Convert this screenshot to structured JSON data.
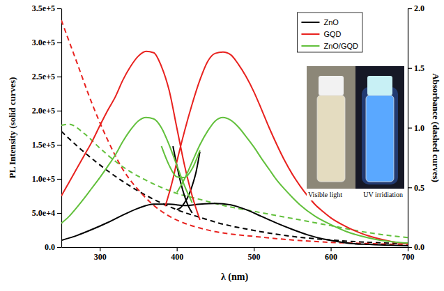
{
  "chart_data": {
    "type": "line",
    "x_label": "λ (nm)",
    "y_label": "PL Intensity (solid curves)",
    "y2_label": "Absorbance (dashed curves)",
    "xlim": [
      250,
      700
    ],
    "xticks": [
      300,
      400,
      500,
      600,
      700
    ],
    "ylim": [
      0,
      350000
    ],
    "yticks": [
      {
        "value": 0,
        "label": "0.0"
      },
      {
        "value": 50000,
        "label": "5.0e+4"
      },
      {
        "value": 100000,
        "label": "1.0e+5"
      },
      {
        "value": 150000,
        "label": "1.5e+5"
      },
      {
        "value": 200000,
        "label": "2.0e+5"
      },
      {
        "value": 250000,
        "label": "2.5e+5"
      },
      {
        "value": 300000,
        "label": "3.0e+5"
      },
      {
        "value": 350000,
        "label": "3.5e+5"
      }
    ],
    "y2lim": [
      0,
      2
    ],
    "y2ticks": [
      {
        "value": 0,
        "label": "0.0"
      },
      0.5,
      {
        "value": 1,
        "label": "1.0"
      },
      1.5,
      {
        "value": 2,
        "label": "2.0"
      }
    ],
    "grid": false,
    "legend": "upper right",
    "annotations": [
      "Visible light",
      "UV irridiation"
    ],
    "series": [
      {
        "name": "ZnO",
        "color": "#000000",
        "pl": [
          {
            "line_style": "solid",
            "axis": "y",
            "x": [
              250,
              270,
              290,
              310,
              330,
              350,
              370,
              390,
              410,
              430,
              450,
              470,
              490,
              510,
              530,
              550,
              570,
              590,
              610,
              630,
              650,
              670,
              700
            ],
            "values": [
              10000,
              17000,
              26000,
              36000,
              47000,
              57000,
              63000,
              63000,
              61000,
              63000,
              64000,
              62000,
              55000,
              45000,
              35000,
              26000,
              18000,
              12000,
              8000,
              5000,
              4000,
              3000,
              2000
            ]
          },
          {
            "line_style": "solid",
            "axis": "y",
            "x": [
              395,
              400,
              405,
              410,
              415,
              420
            ],
            "values": [
              148000,
              120000,
              95000,
              75000,
              60000,
              50000
            ]
          },
          {
            "line_style": "solid",
            "axis": "y",
            "x": [
              400,
              405,
              410,
              415,
              420,
              425,
              430
            ],
            "values": [
              55000,
              58000,
              65000,
              75000,
              90000,
              110000,
              140000
            ]
          }
        ],
        "absorbance": {
          "line_style": "dashed",
          "axis": "y2",
          "x": [
            250,
            270,
            290,
            310,
            330,
            350,
            370,
            390,
            410,
            430,
            450,
            500,
            550,
            600,
            650,
            700
          ],
          "values": [
            0.97,
            0.85,
            0.74,
            0.64,
            0.55,
            0.47,
            0.4,
            0.34,
            0.29,
            0.25,
            0.21,
            0.14,
            0.09,
            0.06,
            0.04,
            0.03
          ]
        }
      },
      {
        "name": "GQD",
        "color": "#e8221f",
        "pl": [
          {
            "line_style": "solid",
            "axis": "y",
            "x": [
              250,
              260,
              270,
              280,
              290,
              300,
              310,
              320,
              330,
              340,
              350,
              360,
              370,
              380,
              390,
              400,
              410,
              420,
              430
            ],
            "values": [
              75000,
              95000,
              115000,
              135000,
              155000,
              178000,
              200000,
              220000,
              245000,
              265000,
              280000,
              287000,
              285000,
              265000,
              230000,
              175000,
              120000,
              75000,
              40000
            ]
          },
          {
            "line_style": "solid",
            "axis": "y",
            "x": [
              385,
              395,
              400,
              410,
              420,
              430,
              440,
              450,
              460,
              470,
              480,
              490,
              500,
              510,
              520,
              530,
              540,
              550,
              560,
              570,
              580,
              590,
              600,
              620,
              640,
              660,
              680,
              700
            ],
            "values": [
              60000,
              100000,
              125000,
              170000,
              210000,
              245000,
              272000,
              284000,
              286000,
              282000,
              268000,
              250000,
              228000,
              202000,
              175000,
              150000,
              127000,
              107000,
              90000,
              75000,
              62000,
              52000,
              43000,
              30000,
              20000,
              13000,
              8000,
              5000
            ]
          }
        ],
        "absorbance": {
          "line_style": "dashed",
          "axis": "y2",
          "x": [
            250,
            270,
            290,
            310,
            330,
            350,
            370,
            390,
            410,
            430,
            450,
            500,
            550,
            600,
            650,
            700
          ],
          "values": [
            1.9,
            1.55,
            1.2,
            0.9,
            0.65,
            0.48,
            0.35,
            0.26,
            0.2,
            0.16,
            0.13,
            0.09,
            0.06,
            0.04,
            0.03,
            0.02
          ]
        }
      },
      {
        "name": "ZnO/GQD",
        "color": "#62c03c",
        "pl": [
          {
            "line_style": "solid",
            "axis": "y",
            "x": [
              250,
              260,
              270,
              280,
              290,
              300,
              310,
              320,
              330,
              340,
              350,
              360,
              370,
              380,
              390,
              400,
              410,
              420
            ],
            "values": [
              35000,
              45000,
              58000,
              72000,
              87000,
              102000,
              118000,
              135000,
              155000,
              172000,
              185000,
              190000,
              188000,
              175000,
              150000,
              120000,
              90000,
              65000
            ]
          },
          {
            "line_style": "solid",
            "axis": "y",
            "x": [
              380,
              390,
              400,
              410,
              420,
              430
            ],
            "values": [
              148000,
              120000,
              103000,
              102000,
              115000,
              142000
            ]
          },
          {
            "line_style": "solid",
            "axis": "y",
            "x": [
              400,
              410,
              420,
              430,
              440,
              450,
              460,
              470,
              480,
              490,
              500,
              510,
              520,
              530,
              540,
              550,
              560,
              580,
              600,
              620,
              640,
              660,
              680,
              700
            ],
            "values": [
              80000,
              100000,
              125000,
              150000,
              170000,
              185000,
              190000,
              186000,
              176000,
              162000,
              147000,
              130000,
              114000,
              98000,
              85000,
              73000,
              62000,
              45000,
              33000,
              23000,
              16000,
              11000,
              8000,
              6000
            ]
          }
        ],
        "absorbance": {
          "line_style": "dashed",
          "axis": "y2",
          "x": [
            250,
            260,
            280,
            300,
            320,
            340,
            360,
            380,
            400,
            430,
            460,
            500,
            550,
            600,
            650,
            700
          ],
          "values": [
            1.02,
            1.03,
            0.95,
            0.83,
            0.72,
            0.63,
            0.56,
            0.5,
            0.45,
            0.4,
            0.35,
            0.3,
            0.24,
            0.18,
            0.12,
            0.08
          ]
        }
      }
    ]
  }
}
